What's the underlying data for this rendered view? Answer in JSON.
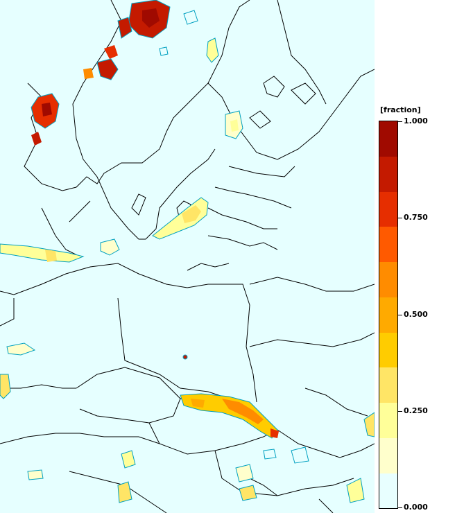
{
  "legend": {
    "unit": "[fraction]",
    "colors": [
      "#e8ffff",
      "#ffffcc",
      "#ffff99",
      "#ffe566",
      "#ffcc00",
      "#ffaa00",
      "#ff8c00",
      "#ff5a00",
      "#e62e00",
      "#c41a00",
      "#a00a00"
    ],
    "ticks": [
      {
        "value": 1.0,
        "label": "1.000"
      },
      {
        "value": 0.75,
        "label": "0.750"
      },
      {
        "value": 0.5,
        "label": "0.500"
      },
      {
        "value": 0.25,
        "label": "0.250"
      },
      {
        "value": 0.0,
        "label": "0.000"
      }
    ],
    "min": 0.0,
    "max": 1.0
  },
  "map": {
    "background_color": "#e6ffff",
    "border_color": "#000000",
    "contour_color": "#00a0c0",
    "features": [
      "snow-cover-fraction-field",
      "country-borders",
      "coastlines"
    ]
  }
}
